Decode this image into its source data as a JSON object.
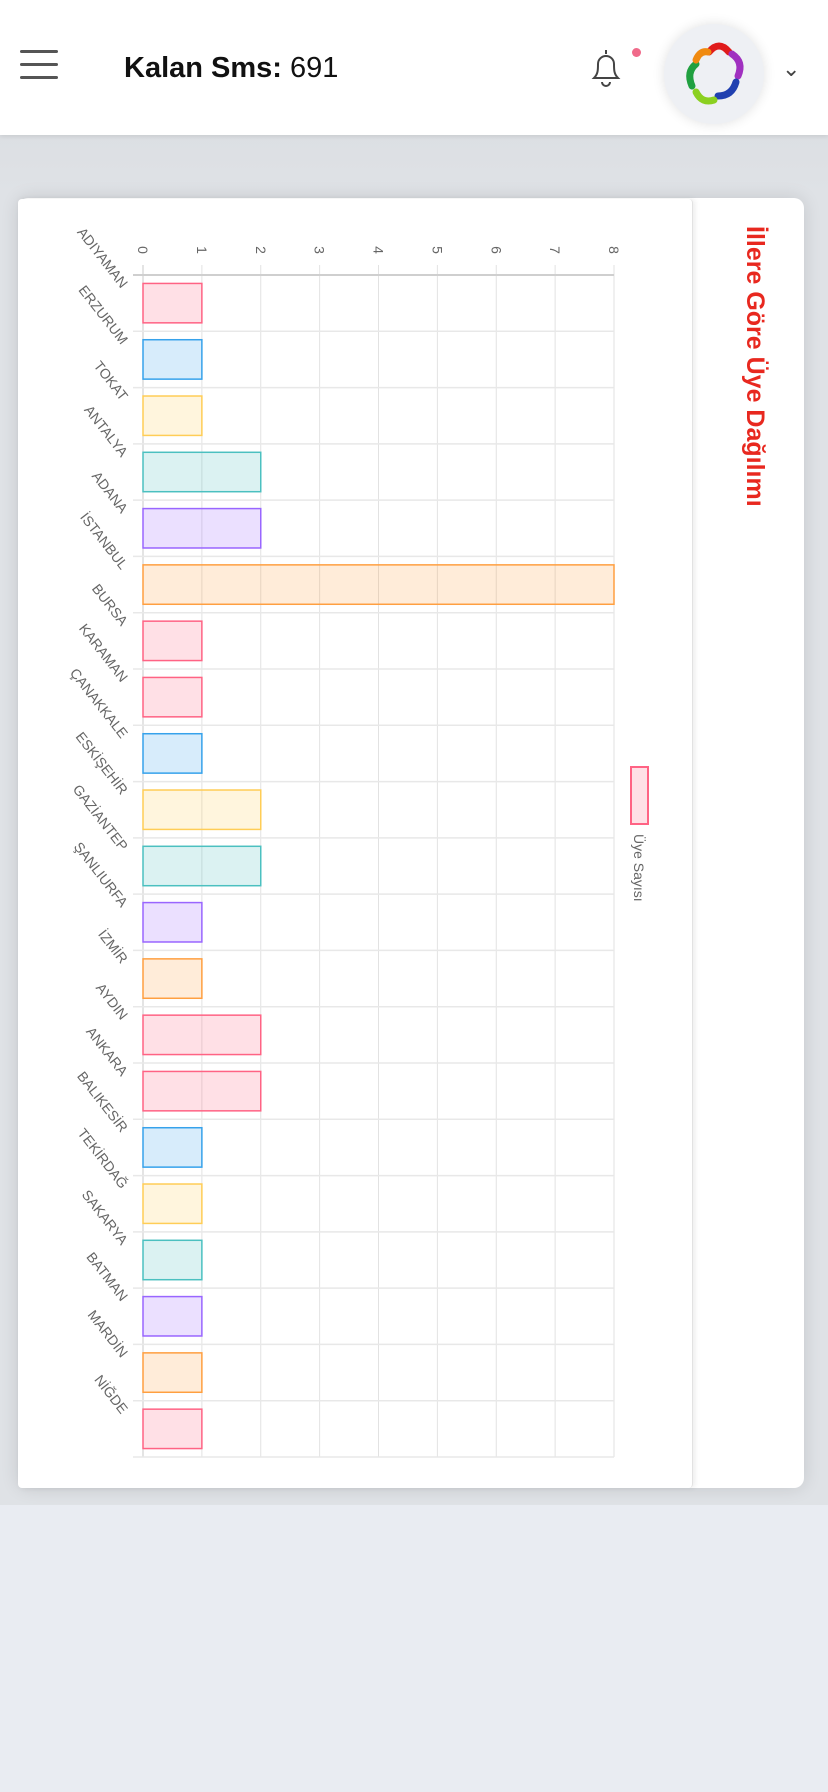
{
  "header": {
    "sms_label": "Kalan Sms:",
    "sms_value": "691"
  },
  "icons": {
    "menu": "hamburger-icon",
    "bell": "bell-icon",
    "chevron": "chevron-down-icon"
  },
  "card": {
    "title": "İllere Göre Üye Dağılımı"
  },
  "chart_data": {
    "type": "bar",
    "orientation": "rotated-90",
    "title": "İllere Göre Üye Dağılımı",
    "categories": [
      "ADIYAMAN",
      "ERZURUM",
      "TOKAT",
      "ANTALYA",
      "ADANA",
      "İSTANBUL",
      "BURSA",
      "KARAMAN",
      "ÇANAKKALE",
      "ESKİŞEHİR",
      "GAZİANTEP",
      "ŞANLIURFA",
      "İZMİR",
      "AYDIN",
      "ANKARA",
      "BALIKESİR",
      "TEKİRDAĞ",
      "SAKARYA",
      "BATMAN",
      "MARDİN",
      "NİĞDE"
    ],
    "series": [
      {
        "name": "Üye Sayısı",
        "values": [
          1,
          1,
          1,
          2,
          2,
          8,
          1,
          1,
          1,
          2,
          2,
          1,
          1,
          2,
          2,
          1,
          1,
          1,
          1,
          1,
          1
        ]
      }
    ],
    "colors": [
      "#ff6384",
      "#36a2eb",
      "#ffcd56",
      "#4bc0c0",
      "#9966ff",
      "#ff9f40",
      "#ff6384",
      "#ff6384",
      "#36a2eb",
      "#ffcd56",
      "#4bc0c0",
      "#9966ff",
      "#ff9f40",
      "#ff6384",
      "#ff6384",
      "#36a2eb",
      "#ffcd56",
      "#4bc0c0",
      "#9966ff",
      "#ff9f40",
      "#ff6384"
    ],
    "ticks": [
      "0",
      "1",
      "2",
      "3",
      "4",
      "5",
      "6",
      "7",
      "8"
    ],
    "ylim": [
      0,
      8
    ],
    "grid": true,
    "legend": "right"
  }
}
